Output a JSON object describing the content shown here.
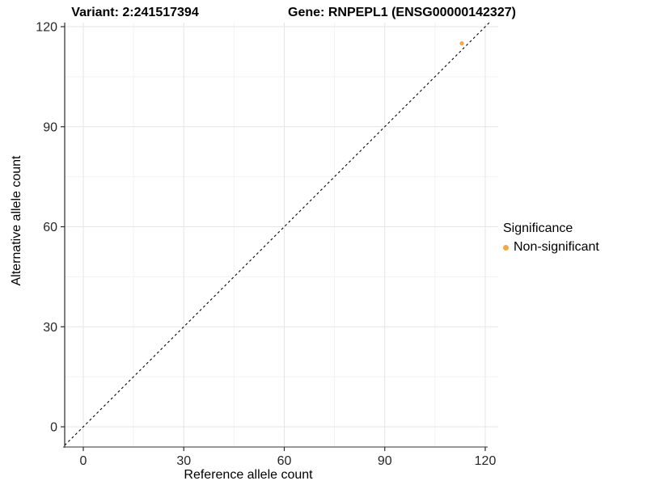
{
  "header": {
    "variant_title": "Variant: 2:241517394",
    "gene_title": "Gene: RNPEPL1 (ENSG00000142327)"
  },
  "chart_data": {
    "type": "scatter",
    "title_left": "Variant: 2:241517394",
    "title_right": "Gene: RNPEPL1 (ENSG00000142327)",
    "xlabel": "Reference allele count",
    "ylabel": "Alternative allele count",
    "xlim": [
      0,
      120
    ],
    "ylim": [
      0,
      120
    ],
    "xticks": [
      0,
      30,
      60,
      90,
      120
    ],
    "yticks": [
      0,
      30,
      60,
      90,
      120
    ],
    "x_minor_ticks": [
      15,
      45,
      75,
      105
    ],
    "y_minor_ticks": [
      15,
      45,
      75,
      105
    ],
    "grid": {
      "major": true,
      "minor": true
    },
    "reference_line": {
      "kind": "identity",
      "slope": 1,
      "intercept": 0,
      "style": "dashed",
      "color": "#000000"
    },
    "series": [
      {
        "name": "Non-significant",
        "color": "#F9A63A",
        "points": [
          {
            "x": 113,
            "y": 115
          }
        ]
      }
    ],
    "legend": {
      "title": "Significance",
      "position": "right",
      "entries": [
        {
          "label": "Non-significant",
          "color": "#F9A63A"
        }
      ]
    },
    "colors": {
      "background": "#ffffff",
      "grid_major": "#e5e5e5",
      "grid_minor": "#f2f2f2",
      "y_axis_line": "#2a2a2a",
      "x_axis_line": "#5a5a5a",
      "tick_mark": "#2a2a2a",
      "tick_label": "#262626",
      "point": "#F9A63A"
    }
  }
}
